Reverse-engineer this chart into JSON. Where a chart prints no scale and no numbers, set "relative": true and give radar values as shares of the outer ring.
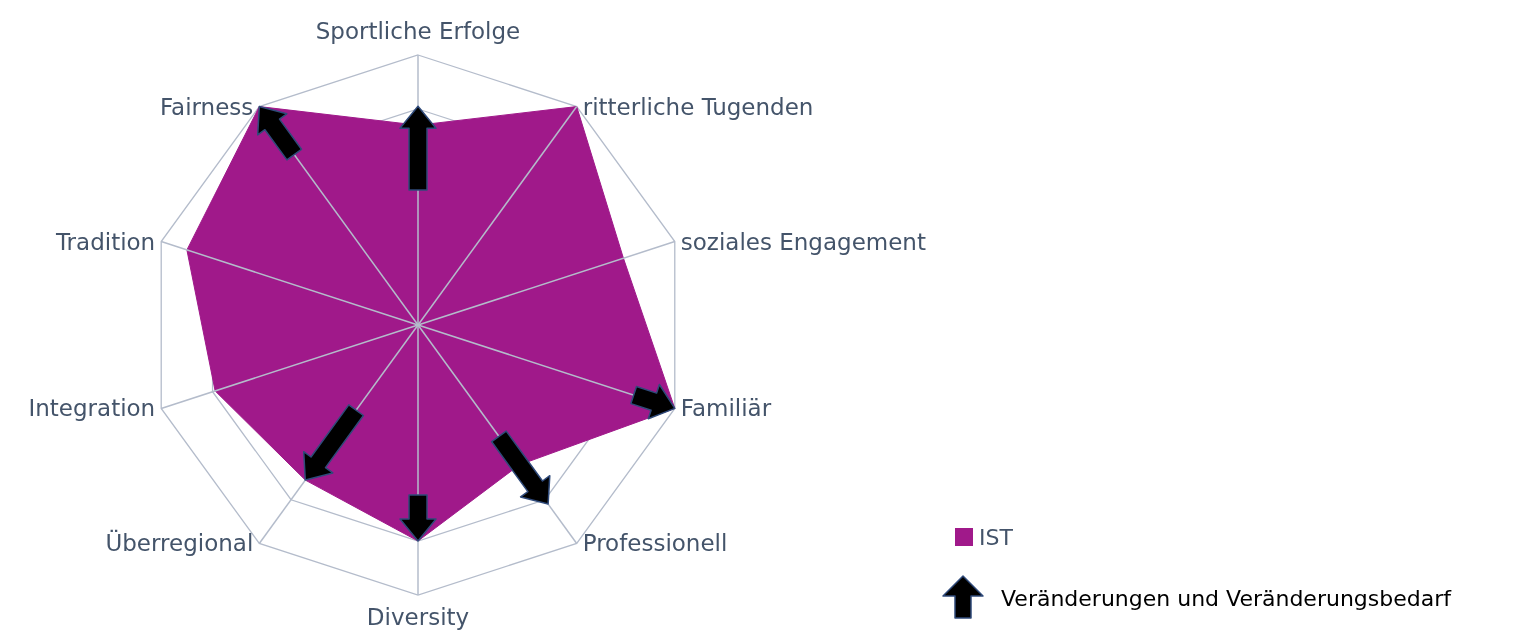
{
  "chart_data": {
    "type": "radar",
    "relative": true,
    "grid": true,
    "legend": "bottom right",
    "categories": [
      "Sportliche Erfolge",
      "ritterliche Tugenden",
      "soziales Engagement",
      "Familiär",
      "Professionell",
      "Diversity",
      "Überregional",
      "Integration",
      "Tradition",
      "Fairness"
    ],
    "series": [
      {
        "name": "IST",
        "color": "#a0198a",
        "values": [
          0.74,
          1,
          0.8,
          1,
          0.64,
          0.8,
          0.71,
          0.79,
          0.9,
          1
        ]
      }
    ],
    "annotations": [
      "Veränderungen und Veränderungsbedarf"
    ]
  }
}
